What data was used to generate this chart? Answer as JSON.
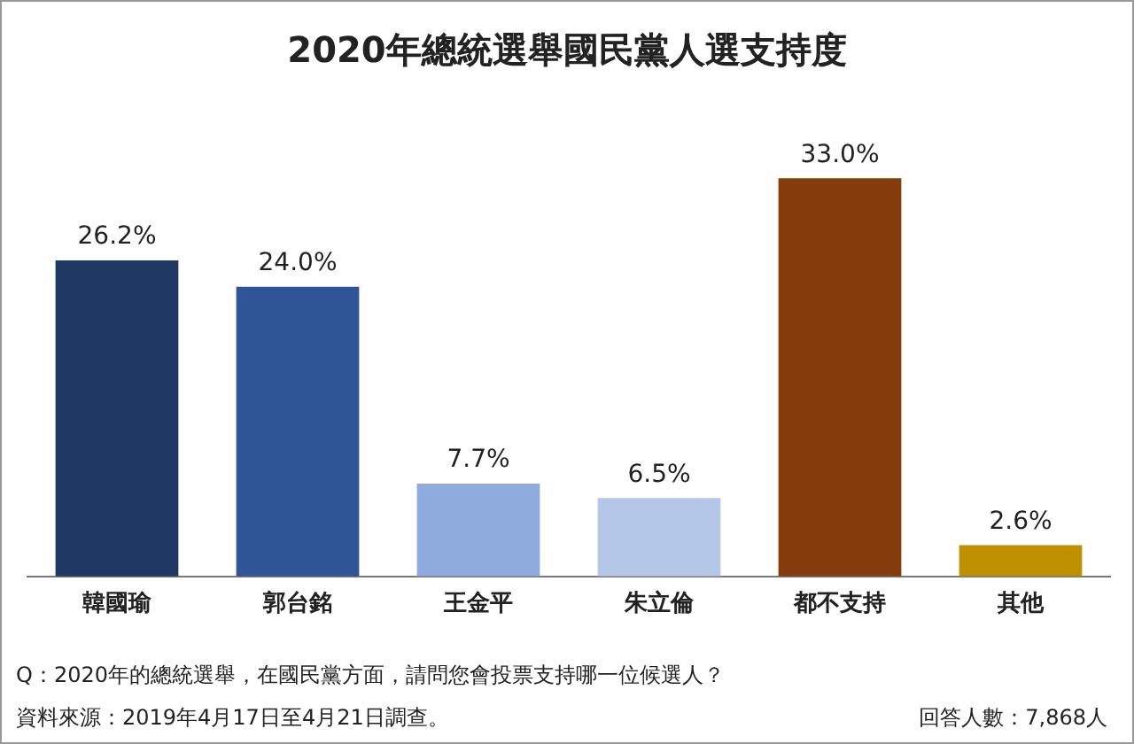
{
  "chart_data": {
    "type": "bar",
    "title": "2020年總統選舉國民黨人選支持度",
    "categories": [
      "韓國瑜",
      "郭台銘",
      "王金平",
      "朱立倫",
      "都不支持",
      "其他"
    ],
    "values": [
      26.2,
      24.0,
      7.7,
      6.5,
      33.0,
      2.6
    ],
    "colors": [
      "#1f3864",
      "#2f5597",
      "#8faadc",
      "#b4c7e7",
      "#843c0c",
      "#bf9000"
    ],
    "value_labels": [
      "26.2%",
      "24.0%",
      "7.7%",
      "6.5%",
      "33.0%",
      "2.6%"
    ],
    "grid": false,
    "legend": false,
    "annotations": [
      "Q：2020年的總統選舉，在國民黨方面，請問您會投票支持哪一位候選人？",
      "資料來源：2019年4月17日至4月21日調查。",
      "回答人數：7,868人"
    ]
  }
}
